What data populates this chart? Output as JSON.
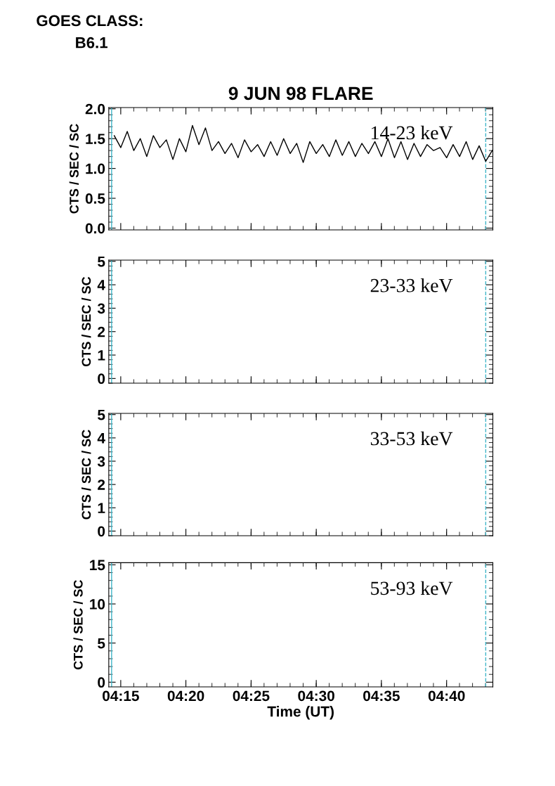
{
  "chart_data": [
    {
      "type": "line",
      "title": "9 JUN 98 FLARE",
      "ylabel": "CTS / SEC / SC",
      "annotations": [
        "GOES CLASS:",
        "B6.1",
        "14-23 keV"
      ],
      "xticks": [
        {
          "value": 4.25,
          "label": null
        },
        {
          "value": 4.3333,
          "label": null
        },
        {
          "value": 4.4167,
          "label": null
        },
        {
          "value": 4.5,
          "label": null
        },
        {
          "value": 4.5833,
          "label": null
        },
        {
          "value": 4.6667,
          "label": null
        }
      ],
      "x": [
        4.2417,
        4.25,
        4.2583,
        4.2667,
        4.275,
        4.2833,
        4.2917,
        4.3,
        4.3083,
        4.3167,
        4.325,
        4.3333,
        4.3417,
        4.35,
        4.3583,
        4.3667,
        4.375,
        4.3833,
        4.3917,
        4.4,
        4.4083,
        4.4167,
        4.425,
        4.4333,
        4.4417,
        4.45,
        4.4583,
        4.4667,
        4.475,
        4.4833,
        4.4917,
        4.5,
        4.5083,
        4.5167,
        4.525,
        4.5333,
        4.5417,
        4.55,
        4.5583,
        4.5667,
        4.575,
        4.5833,
        4.5917,
        4.6,
        4.6083,
        4.6167,
        4.625,
        4.6333,
        4.6417,
        4.65,
        4.6583,
        4.6667,
        4.675,
        4.6833,
        4.6917,
        4.7,
        4.7083,
        4.7167,
        4.725
      ],
      "series": [
        {
          "color": "#000000",
          "values": [
            1.55,
            1.35,
            1.62,
            1.3,
            1.5,
            1.2,
            1.55,
            1.35,
            1.48,
            1.15,
            1.5,
            1.28,
            1.72,
            1.4,
            1.68,
            1.3,
            1.45,
            1.25,
            1.42,
            1.18,
            1.48,
            1.28,
            1.4,
            1.2,
            1.45,
            1.22,
            1.5,
            1.25,
            1.42,
            1.1,
            1.45,
            1.25,
            1.4,
            1.2,
            1.48,
            1.22,
            1.45,
            1.2,
            1.42,
            1.25,
            1.45,
            1.2,
            1.5,
            1.18,
            1.45,
            1.15,
            1.42,
            1.2,
            1.4,
            1.3,
            1.35,
            1.18,
            1.4,
            1.2,
            1.45,
            1.15,
            1.38,
            1.12,
            1.3
          ]
        }
      ],
      "xlim": [
        4.2347,
        4.7258
      ],
      "ylim": [
        -0.03,
        2.02
      ],
      "yticks": [
        {
          "value": 0,
          "label": "0.0"
        },
        {
          "value": 0.5,
          "label": "0.5"
        },
        {
          "value": 1,
          "label": "1.0"
        },
        {
          "value": 1.5,
          "label": "1.5"
        },
        {
          "value": 2,
          "label": "2.0"
        }
      ],
      "tick_labels": "y",
      "grid": false,
      "line_style": "solid",
      "marker": "none",
      "ref_lines": [
        {
          "axis": "x",
          "value": 4.2383,
          "color": "#3fb5c8",
          "line_style": "solid"
        },
        {
          "axis": "x",
          "value": 4.7167,
          "color": "#3fb5c8",
          "line_style": "dashed"
        }
      ]
    },
    {
      "type": "line",
      "ylabel": "CTS / SEC / SC",
      "annotations": [
        "23-33 keV"
      ],
      "xlim": [
        4.2347,
        4.7258
      ],
      "ylim": [
        -0.2,
        5.05
      ],
      "xticks": [
        {
          "value": 4.25,
          "label": null
        },
        {
          "value": 4.3333,
          "label": null
        },
        {
          "value": 4.4167,
          "label": null
        },
        {
          "value": 4.5,
          "label": null
        },
        {
          "value": 4.5833,
          "label": null
        },
        {
          "value": 4.6667,
          "label": null
        }
      ],
      "yticks": [
        0,
        1,
        2,
        3,
        4,
        5
      ],
      "tick_labels": "y",
      "grid": false,
      "ref_lines": [
        {
          "axis": "x",
          "value": 4.2383,
          "color": "#3fb5c8",
          "line_style": "solid"
        },
        {
          "axis": "x",
          "value": 4.7167,
          "color": "#3fb5c8",
          "line_style": "dashed"
        }
      ]
    },
    {
      "type": "line",
      "ylabel": "CTS / SEC / SC",
      "annotations": [
        "33-53 keV"
      ],
      "xlim": [
        4.2347,
        4.7258
      ],
      "ylim": [
        -0.2,
        5.05
      ],
      "xticks": [
        {
          "value": 4.25,
          "label": null
        },
        {
          "value": 4.3333,
          "label": null
        },
        {
          "value": 4.4167,
          "label": null
        },
        {
          "value": 4.5,
          "label": null
        },
        {
          "value": 4.5833,
          "label": null
        },
        {
          "value": 4.6667,
          "label": null
        }
      ],
      "yticks": [
        0,
        1,
        2,
        3,
        4,
        5
      ],
      "tick_labels": "y",
      "grid": false,
      "ref_lines": [
        {
          "axis": "x",
          "value": 4.2383,
          "color": "#3fb5c8",
          "line_style": "solid"
        },
        {
          "axis": "x",
          "value": 4.7167,
          "color": "#3fb5c8",
          "line_style": "dashed"
        }
      ]
    },
    {
      "type": "line",
      "ylabel": "CTS / SEC / SC",
      "xlabel": "Time (UT)",
      "annotations": [
        "53-93 keV"
      ],
      "xlim": [
        4.2347,
        4.7258
      ],
      "ylim": [
        -0.6,
        15.27
      ],
      "xticks": [
        {
          "value": 4.25,
          "label": "04:15"
        },
        {
          "value": 4.3333,
          "label": "04:20"
        },
        {
          "value": 4.4167,
          "label": "04:25"
        },
        {
          "value": 4.5,
          "label": "04:30"
        },
        {
          "value": 4.5833,
          "label": "04:35"
        },
        {
          "value": 4.6667,
          "label": "04:40"
        }
      ],
      "yticks": [
        0,
        5,
        10,
        15
      ],
      "grid": false,
      "ref_lines": [
        {
          "axis": "x",
          "value": 4.2383,
          "color": "#3fb5c8",
          "line_style": "solid"
        },
        {
          "axis": "x",
          "value": 4.7167,
          "color": "#3fb5c8",
          "line_style": "dashed"
        }
      ]
    }
  ]
}
